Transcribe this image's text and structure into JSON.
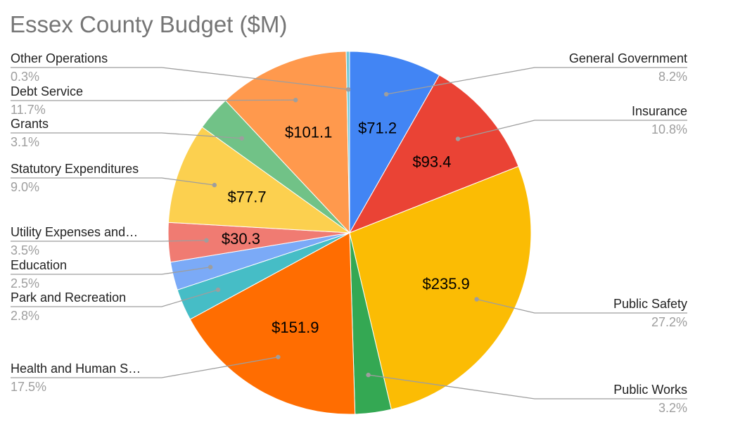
{
  "chart_data": {
    "type": "pie",
    "title": "Essex County Budget ($M)",
    "slices": [
      {
        "name": "General Government",
        "value": 71.2,
        "value_label": "$71.2",
        "percent_label": "8.2%",
        "color": "#4285f4"
      },
      {
        "name": "Insurance",
        "value": 93.4,
        "value_label": "$93.4",
        "percent_label": "10.8%",
        "color": "#ea4335"
      },
      {
        "name": "Public Safety",
        "value": 235.9,
        "value_label": "$235.9",
        "percent_label": "27.2%",
        "color": "#fbbc04"
      },
      {
        "name": "Public Works",
        "value": 27.8,
        "value_label": "",
        "percent_label": "3.2%",
        "color": "#34a853"
      },
      {
        "name": "Health and Human S…",
        "value": 151.9,
        "value_label": "$151.9",
        "percent_label": "17.5%",
        "color": "#ff6d01"
      },
      {
        "name": "Park and Recreation",
        "value": 24.3,
        "value_label": "",
        "percent_label": "2.8%",
        "color": "#46bdc6"
      },
      {
        "name": "Education",
        "value": 21.7,
        "value_label": "",
        "percent_label": "2.5%",
        "color": "#7baaf7"
      },
      {
        "name": "Utility Expenses and…",
        "value": 30.3,
        "value_label": "$30.3",
        "percent_label": "3.5%",
        "color": "#f07b72"
      },
      {
        "name": "Statutory Expenditures",
        "value": 77.7,
        "value_label": "$77.7",
        "percent_label": "9.0%",
        "color": "#fcd04f"
      },
      {
        "name": "Grants",
        "value": 26.9,
        "value_label": "",
        "percent_label": "3.1%",
        "color": "#71c287"
      },
      {
        "name": "Debt Service",
        "value": 101.1,
        "value_label": "$101.1",
        "percent_label": "11.7%",
        "color": "#ff994d"
      },
      {
        "name": "Other Operations",
        "value": 2.6,
        "value_label": "",
        "percent_label": "0.3%",
        "color": "#73cad6"
      }
    ],
    "legend": "none",
    "label_placement": "outside with leader lines"
  }
}
